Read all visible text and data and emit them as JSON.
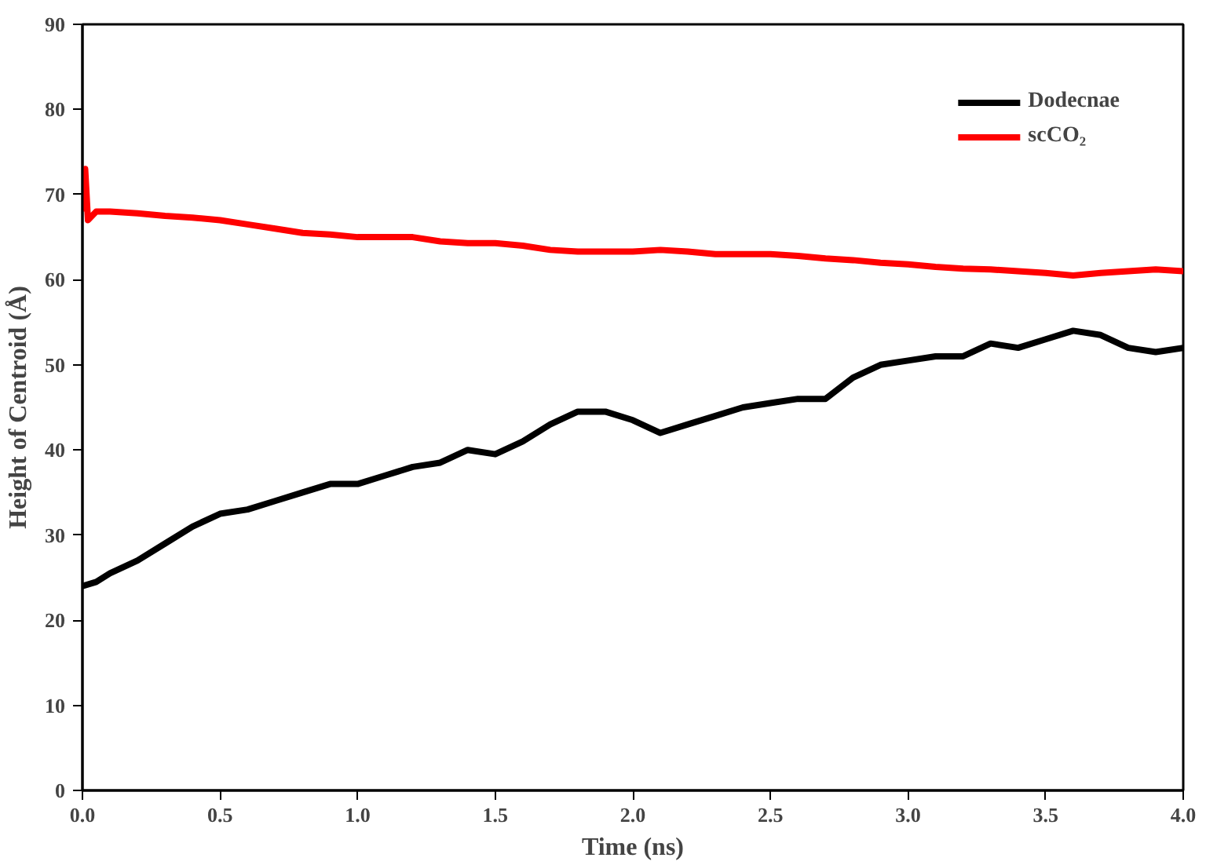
{
  "chart_data": {
    "type": "line",
    "xlabel": "Time (ns)",
    "ylabel": "Height of Centroid (Å)",
    "xlim": [
      0,
      4
    ],
    "ylim": [
      0,
      90
    ],
    "xticks": [
      {
        "value": 0,
        "label": "0.0"
      },
      0.5,
      {
        "value": 1,
        "label": "1.0"
      },
      1.5,
      {
        "value": 2,
        "label": "2.0"
      },
      2.5,
      {
        "value": 3,
        "label": "3.0"
      },
      3.5,
      {
        "value": 4,
        "label": "4.0"
      }
    ],
    "yticks": [
      0,
      10,
      20,
      30,
      40,
      50,
      60,
      70,
      80,
      90
    ],
    "grid": false,
    "legend": "top right",
    "line_style": "solid",
    "marker": "none",
    "series": [
      {
        "name": "Dodecnae",
        "color": "#000000",
        "x": [
          0,
          0.05,
          0.1,
          0.2,
          0.3,
          0.4,
          0.5,
          0.6,
          0.7,
          0.8,
          0.9,
          1.0,
          1.1,
          1.2,
          1.3,
          1.4,
          1.5,
          1.6,
          1.7,
          1.8,
          1.9,
          2.0,
          2.1,
          2.2,
          2.3,
          2.4,
          2.5,
          2.6,
          2.7,
          2.8,
          2.9,
          3.0,
          3.1,
          3.2,
          3.3,
          3.4,
          3.5,
          3.6,
          3.7,
          3.8,
          3.9,
          4.0
        ],
        "values": [
          24,
          24.5,
          25.5,
          27,
          29,
          31,
          32.5,
          33,
          34,
          35,
          36,
          36,
          37,
          38,
          38.5,
          40,
          39.5,
          41,
          43,
          44.5,
          44.5,
          43.5,
          42,
          43,
          44,
          45,
          45.5,
          46,
          46,
          48.5,
          50,
          50.5,
          51,
          51,
          52.5,
          52,
          53,
          54,
          53.5,
          52,
          51.5,
          52
        ]
      },
      {
        "name": "scCO₂",
        "color": "#ff0000",
        "x": [
          0,
          0.01,
          0.02,
          0.05,
          0.1,
          0.2,
          0.3,
          0.4,
          0.5,
          0.6,
          0.7,
          0.8,
          0.9,
          1.0,
          1.1,
          1.2,
          1.3,
          1.4,
          1.5,
          1.6,
          1.7,
          1.8,
          1.9,
          2.0,
          2.1,
          2.2,
          2.3,
          2.4,
          2.5,
          2.6,
          2.7,
          2.8,
          2.9,
          3.0,
          3.1,
          3.2,
          3.3,
          3.4,
          3.5,
          3.6,
          3.7,
          3.8,
          3.9,
          4.0
        ],
        "values": [
          68,
          73,
          67,
          68,
          68,
          67.8,
          67.5,
          67.3,
          67,
          66.5,
          66,
          65.5,
          65.3,
          65,
          65,
          65,
          64.5,
          64.3,
          64.3,
          64,
          63.5,
          63.3,
          63.3,
          63.3,
          63.5,
          63.3,
          63,
          63,
          63,
          62.8,
          62.5,
          62.3,
          62,
          61.8,
          61.5,
          61.3,
          61.2,
          61,
          60.8,
          60.5,
          60.8,
          61,
          61.2,
          61
        ]
      }
    ]
  }
}
